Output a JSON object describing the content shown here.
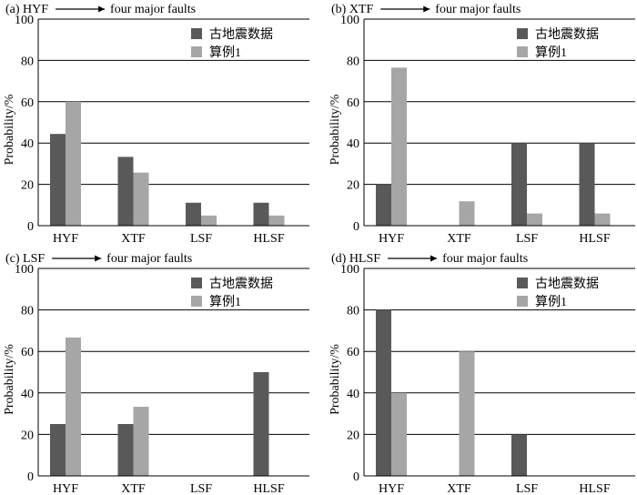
{
  "colors": {
    "series1": "#595959",
    "series2": "#a6a6a6",
    "grid": "#000000"
  },
  "chart_data": [
    {
      "type": "bar",
      "title_prefix": "(a) HYF",
      "title_suffix": "four major faults",
      "ylabel": "Probability/%",
      "ylim": [
        0,
        100
      ],
      "yticks": [
        0,
        20,
        40,
        60,
        80,
        100
      ],
      "categories": [
        "HYF",
        "XTF",
        "LSF",
        "HLSF"
      ],
      "legend_position": "top-right",
      "series": [
        {
          "name": "古地震数据",
          "values": [
            44.4,
            33.3,
            11.1,
            11.1
          ]
        },
        {
          "name": "算例1",
          "values": [
            60.0,
            25.7,
            4.9,
            4.9
          ]
        }
      ]
    },
    {
      "type": "bar",
      "title_prefix": "(b) XTF",
      "title_suffix": "four major faults",
      "ylabel": "Probability/%",
      "ylim": [
        0,
        100
      ],
      "yticks": [
        0,
        20,
        40,
        60,
        80,
        100
      ],
      "categories": [
        "HYF",
        "XTF",
        "LSF",
        "HLSF"
      ],
      "legend_position": "top-right",
      "series": [
        {
          "name": "古地震数据",
          "values": [
            20,
            0,
            40,
            40
          ]
        },
        {
          "name": "算例1",
          "values": [
            76.5,
            11.8,
            5.9,
            5.9
          ]
        }
      ]
    },
    {
      "type": "bar",
      "title_prefix": "(c) LSF",
      "title_suffix": "four major faults",
      "ylabel": "Probability/%",
      "ylim": [
        0,
        100
      ],
      "yticks": [
        0,
        20,
        40,
        60,
        80,
        100
      ],
      "categories": [
        "HYF",
        "XTF",
        "LSF",
        "HLSF"
      ],
      "legend_position": "top-right",
      "series": [
        {
          "name": "古地震数据",
          "values": [
            25,
            25,
            0,
            50
          ]
        },
        {
          "name": "算例1",
          "values": [
            66.7,
            33.3,
            0,
            0
          ]
        }
      ]
    },
    {
      "type": "bar",
      "title_prefix": "(d) HLSF",
      "title_suffix": "four major faults",
      "ylabel": "Probability/%",
      "ylim": [
        0,
        100
      ],
      "yticks": [
        0,
        20,
        40,
        60,
        80,
        100
      ],
      "categories": [
        "HYF",
        "XTF",
        "LSF",
        "HLSF"
      ],
      "legend_position": "top-right",
      "series": [
        {
          "name": "古地震数据",
          "values": [
            80,
            0,
            20,
            0
          ]
        },
        {
          "name": "算例1",
          "values": [
            40,
            60,
            0,
            0
          ]
        }
      ]
    }
  ]
}
